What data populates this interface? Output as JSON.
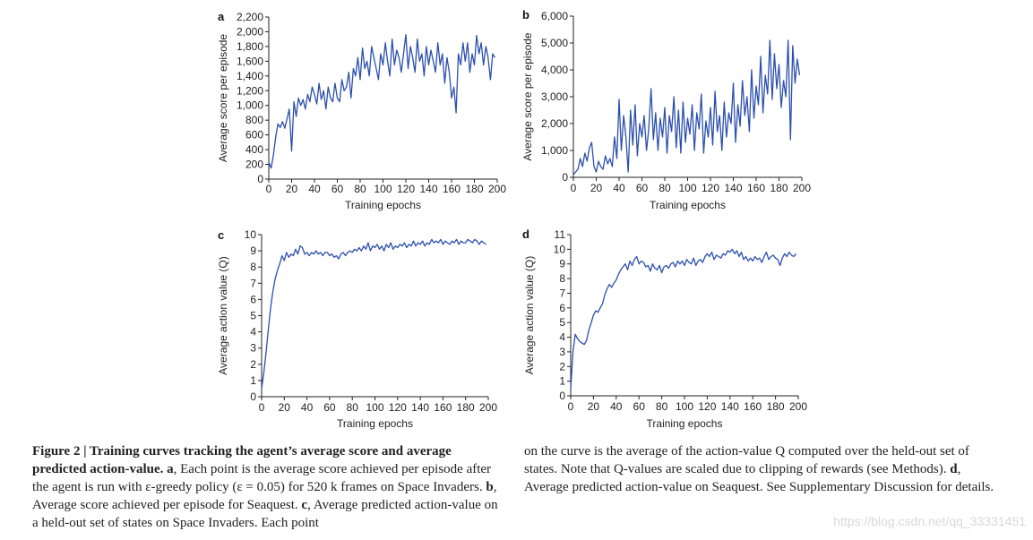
{
  "chart_data": [
    {
      "panel": "a",
      "type": "line",
      "xlabel": "Training epochs",
      "ylabel": "Average score per episode",
      "xlim": [
        0,
        200
      ],
      "ylim": [
        0,
        2200
      ],
      "xticks": [
        0,
        20,
        40,
        60,
        80,
        100,
        120,
        140,
        160,
        180,
        200
      ],
      "yticks": [
        0,
        200,
        400,
        600,
        800,
        1000,
        1200,
        1400,
        1600,
        1800,
        2000,
        2200
      ],
      "ytick_labels": [
        "0",
        "200",
        "400",
        "600",
        "800",
        "1,000",
        "1,200",
        "1,400",
        "1,600",
        "1,800",
        "2,000",
        "2,200"
      ],
      "x": [
        0,
        2,
        4,
        6,
        8,
        10,
        12,
        14,
        16,
        18,
        20,
        22,
        24,
        26,
        28,
        30,
        32,
        34,
        36,
        38,
        40,
        42,
        44,
        46,
        48,
        50,
        52,
        54,
        56,
        58,
        60,
        62,
        64,
        66,
        68,
        70,
        72,
        74,
        76,
        78,
        80,
        82,
        84,
        86,
        88,
        90,
        92,
        94,
        96,
        98,
        100,
        102,
        104,
        106,
        108,
        110,
        112,
        114,
        116,
        118,
        120,
        122,
        124,
        126,
        128,
        130,
        132,
        134,
        136,
        138,
        140,
        142,
        144,
        146,
        148,
        150,
        152,
        154,
        156,
        158,
        160,
        162,
        164,
        166,
        168,
        170,
        172,
        174,
        176,
        178,
        180,
        182,
        184,
        186,
        188,
        190,
        192,
        194,
        196,
        198
      ],
      "y": [
        230,
        150,
        320,
        560,
        750,
        700,
        780,
        690,
        820,
        950,
        380,
        1050,
        850,
        1100,
        1000,
        1080,
        950,
        1150,
        1050,
        1250,
        1150,
        1020,
        1300,
        1080,
        1200,
        950,
        1250,
        1100,
        1050,
        1300,
        1100,
        1050,
        1350,
        1200,
        1250,
        1450,
        1100,
        1500,
        1400,
        1650,
        1350,
        1780,
        1500,
        1600,
        1400,
        1800,
        1650,
        1500,
        1350,
        1700,
        1550,
        1850,
        1600,
        1400,
        1900,
        1550,
        1750,
        1650,
        1450,
        1700,
        1960,
        1500,
        1800,
        1650,
        1450,
        1900,
        1600,
        1700,
        1400,
        1800,
        1550,
        1750,
        1600,
        1450,
        1850,
        1550,
        1700,
        1300,
        1650,
        1450,
        1100,
        1250,
        900,
        1700,
        1550,
        1850,
        1600,
        1850,
        1450,
        1700,
        1550,
        1950,
        1700,
        1850,
        1550,
        1800,
        1650,
        1350,
        1700,
        1650
      ]
    },
    {
      "panel": "b",
      "type": "line",
      "xlabel": "Training epochs",
      "ylabel": "Average score per episode",
      "xlim": [
        0,
        200
      ],
      "ylim": [
        0,
        6000
      ],
      "xticks": [
        0,
        20,
        40,
        60,
        80,
        100,
        120,
        140,
        160,
        180,
        200
      ],
      "yticks": [
        0,
        1000,
        2000,
        3000,
        4000,
        5000,
        6000
      ],
      "ytick_labels": [
        "0",
        "1,000",
        "2,000",
        "3,000",
        "4,000",
        "5,000",
        "6,000"
      ],
      "x": [
        0,
        2,
        4,
        6,
        8,
        10,
        12,
        14,
        16,
        18,
        20,
        22,
        24,
        26,
        28,
        30,
        32,
        34,
        36,
        38,
        40,
        42,
        44,
        46,
        48,
        50,
        52,
        54,
        56,
        58,
        60,
        62,
        64,
        66,
        68,
        70,
        72,
        74,
        76,
        78,
        80,
        82,
        84,
        86,
        88,
        90,
        92,
        94,
        96,
        98,
        100,
        102,
        104,
        106,
        108,
        110,
        112,
        114,
        116,
        118,
        120,
        122,
        124,
        126,
        128,
        130,
        132,
        134,
        136,
        138,
        140,
        142,
        144,
        146,
        148,
        150,
        152,
        154,
        156,
        158,
        160,
        162,
        164,
        166,
        168,
        170,
        172,
        174,
        176,
        178,
        180,
        182,
        184,
        186,
        188,
        190,
        192,
        194,
        196,
        198
      ],
      "y": [
        100,
        200,
        300,
        700,
        400,
        900,
        600,
        1100,
        1300,
        400,
        200,
        600,
        400,
        300,
        800,
        500,
        700,
        400,
        1500,
        700,
        2900,
        1000,
        2300,
        1500,
        200,
        2500,
        1200,
        2700,
        800,
        2000,
        1500,
        2300,
        1000,
        1800,
        3300,
        1400,
        2400,
        1000,
        2200,
        1500,
        2600,
        900,
        2300,
        1700,
        3000,
        1100,
        2500,
        900,
        2800,
        1300,
        2200,
        1600,
        2700,
        1000,
        2400,
        1800,
        3100,
        900,
        2100,
        1500,
        2600,
        1200,
        3200,
        1700,
        2300,
        1000,
        2800,
        1500,
        2400,
        2000,
        3500,
        1300,
        2700,
        1900,
        3600,
        2300,
        3000,
        1700,
        4000,
        2200,
        3400,
        2700,
        4500,
        2400,
        3800,
        3100,
        5100,
        2900,
        4600,
        3300,
        4200,
        2600,
        3600,
        3000,
        5100,
        1400,
        4900,
        3500,
        4400,
        3800
      ]
    },
    {
      "panel": "c",
      "type": "line",
      "xlabel": "Training epochs",
      "ylabel": "Average action value (Q)",
      "xlim": [
        0,
        200
      ],
      "ylim": [
        0,
        10
      ],
      "xticks": [
        0,
        20,
        40,
        60,
        80,
        100,
        120,
        140,
        160,
        180,
        200
      ],
      "yticks": [
        0,
        1,
        2,
        3,
        4,
        5,
        6,
        7,
        8,
        9,
        10
      ],
      "ytick_labels": [
        "0",
        "1",
        "2",
        "3",
        "4",
        "5",
        "6",
        "7",
        "8",
        "9",
        "10"
      ],
      "x": [
        0,
        2,
        4,
        6,
        8,
        10,
        12,
        14,
        16,
        18,
        20,
        22,
        24,
        26,
        28,
        30,
        32,
        34,
        36,
        38,
        40,
        42,
        44,
        46,
        48,
        50,
        52,
        54,
        56,
        58,
        60,
        62,
        64,
        66,
        68,
        70,
        72,
        74,
        76,
        78,
        80,
        82,
        84,
        86,
        88,
        90,
        92,
        94,
        96,
        98,
        100,
        102,
        104,
        106,
        108,
        110,
        112,
        114,
        116,
        118,
        120,
        122,
        124,
        126,
        128,
        130,
        132,
        134,
        136,
        138,
        140,
        142,
        144,
        146,
        148,
        150,
        152,
        154,
        156,
        158,
        160,
        162,
        164,
        166,
        168,
        170,
        172,
        174,
        176,
        178,
        180,
        182,
        184,
        186,
        188,
        190,
        192,
        194,
        196,
        198
      ],
      "y": [
        0.5,
        1.5,
        2.8,
        4.2,
        5.5,
        6.5,
        7.3,
        7.8,
        8.2,
        8.7,
        8.4,
        8.9,
        8.6,
        8.8,
        8.7,
        9.1,
        8.8,
        9.3,
        9.2,
        8.8,
        8.9,
        8.7,
        8.9,
        8.8,
        9.0,
        8.8,
        8.9,
        8.7,
        8.9,
        8.9,
        8.7,
        8.8,
        8.6,
        8.7,
        8.5,
        8.8,
        8.9,
        8.7,
        8.9,
        9.0,
        8.9,
        9.1,
        9.0,
        9.2,
        9.0,
        9.3,
        9.1,
        9.5,
        9.0,
        9.3,
        9.2,
        9.4,
        9.1,
        9.3,
        9.0,
        9.4,
        9.2,
        9.5,
        9.1,
        9.3,
        9.2,
        9.4,
        9.3,
        9.5,
        9.2,
        9.4,
        9.3,
        9.6,
        9.3,
        9.5,
        9.4,
        9.6,
        9.3,
        9.5,
        9.4,
        9.7,
        9.5,
        9.6,
        9.5,
        9.7,
        9.4,
        9.6,
        9.5,
        9.4,
        9.6,
        9.5,
        9.7,
        9.4,
        9.6,
        9.5,
        9.5,
        9.7,
        9.6,
        9.5,
        9.7,
        9.6,
        9.4,
        9.6,
        9.5,
        9.4
      ]
    },
    {
      "panel": "d",
      "type": "line",
      "xlabel": "Training epochs",
      "ylabel": "Average action value (Q)",
      "xlim": [
        0,
        200
      ],
      "ylim": [
        0,
        11
      ],
      "xticks": [
        0,
        20,
        40,
        60,
        80,
        100,
        120,
        140,
        160,
        180,
        200
      ],
      "yticks": [
        0,
        1,
        2,
        3,
        4,
        5,
        6,
        7,
        8,
        9,
        10,
        11
      ],
      "ytick_labels": [
        "0",
        "1",
        "2",
        "3",
        "4",
        "5",
        "6",
        "7",
        "8",
        "9",
        "10",
        "11"
      ],
      "x": [
        0,
        2,
        4,
        6,
        8,
        10,
        12,
        14,
        16,
        18,
        20,
        22,
        24,
        26,
        28,
        30,
        32,
        34,
        36,
        38,
        40,
        42,
        44,
        46,
        48,
        50,
        52,
        54,
        56,
        58,
        60,
        62,
        64,
        66,
        68,
        70,
        72,
        74,
        76,
        78,
        80,
        82,
        84,
        86,
        88,
        90,
        92,
        94,
        96,
        98,
        100,
        102,
        104,
        106,
        108,
        110,
        112,
        114,
        116,
        118,
        120,
        122,
        124,
        126,
        128,
        130,
        132,
        134,
        136,
        138,
        140,
        142,
        144,
        146,
        148,
        150,
        152,
        154,
        156,
        158,
        160,
        162,
        164,
        166,
        168,
        170,
        172,
        174,
        176,
        178,
        180,
        182,
        184,
        186,
        188,
        190,
        192,
        194,
        196,
        198
      ],
      "y": [
        0.5,
        3.0,
        4.2,
        3.9,
        3.7,
        3.6,
        3.5,
        3.8,
        4.5,
        5.0,
        5.5,
        5.8,
        5.7,
        6.0,
        6.3,
        6.9,
        7.3,
        7.6,
        7.4,
        7.7,
        7.9,
        8.3,
        8.6,
        8.8,
        9.0,
        8.6,
        9.2,
        8.9,
        9.3,
        9.5,
        9.0,
        9.2,
        9.1,
        8.8,
        8.9,
        8.5,
        9.0,
        8.7,
        8.6,
        8.9,
        8.4,
        8.8,
        8.9,
        8.7,
        9.0,
        9.1,
        8.8,
        9.2,
        9.0,
        9.2,
        8.9,
        9.3,
        9.1,
        9.0,
        9.4,
        8.9,
        9.2,
        9.3,
        9.1,
        9.5,
        9.7,
        9.5,
        9.8,
        9.3,
        9.6,
        9.5,
        9.4,
        9.7,
        9.6,
        9.9,
        9.8,
        10.0,
        9.7,
        9.9,
        9.5,
        9.8,
        9.3,
        9.5,
        9.2,
        9.4,
        9.2,
        9.5,
        9.3,
        9.4,
        9.1,
        9.5,
        9.8,
        9.3,
        9.5,
        9.6,
        9.4,
        9.3,
        8.9,
        9.4,
        9.7,
        9.5,
        9.8,
        9.6,
        9.5,
        9.7
      ]
    }
  ],
  "caption": {
    "left_lead_bold": "Figure 2 | Training curves tracking the agent’s average score and average predicted action-value.",
    "left_text_1": " a",
    "left_text_2": ", Each point is the average score achieved per episode after the agent is run with ε-greedy policy (ε = 0.05) for 520 k frames on Space Invaders. ",
    "left_text_3": "b",
    "left_text_4": ", Average score achieved per episode for Seaquest. ",
    "left_text_5": "c",
    "left_text_6": ", Average predicted action-value on a held-out set of states on Space Invaders. Each point",
    "right_text_1": "on the curve is the average of the action-value Q computed over the held-out set of states. Note that Q-values are scaled due to clipping of rewards (see Methods). ",
    "right_text_2": "d",
    "right_text_3": ", Average predicted action-value on Seaquest. See Supplementary Discussion for details."
  },
  "watermark": "https://blog.csdn.net/qq_33331451"
}
